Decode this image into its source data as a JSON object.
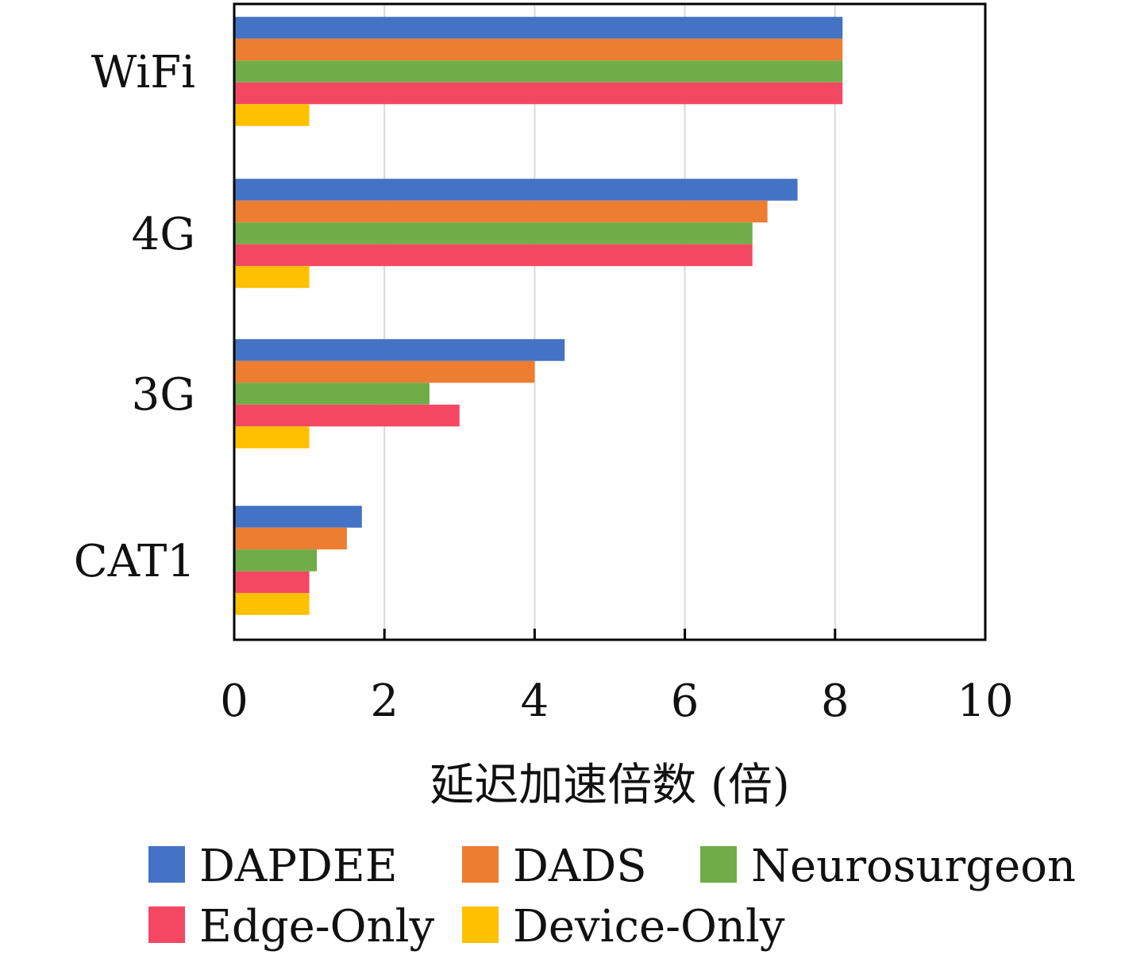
{
  "chart_data": {
    "type": "bar",
    "orientation": "horizontal",
    "categories": [
      "WiFi",
      "4G",
      "3G",
      "CAT1"
    ],
    "series": [
      {
        "name": "DAPDEE",
        "color": "#4472C4",
        "values": [
          8.1,
          7.5,
          4.4,
          1.7
        ]
      },
      {
        "name": "DADS",
        "color": "#ED7D31",
        "values": [
          8.1,
          7.1,
          4.0,
          1.5
        ]
      },
      {
        "name": "Neurosurgeon",
        "color": "#70AD47",
        "values": [
          8.1,
          6.9,
          2.6,
          1.1
        ]
      },
      {
        "name": "Edge-Only",
        "color": "#F44862",
        "values": [
          8.1,
          6.9,
          3.0,
          1.0
        ]
      },
      {
        "name": "Device-Only",
        "color": "#FFC000",
        "values": [
          1.0,
          1.0,
          1.0,
          1.0
        ]
      }
    ],
    "xlim": [
      0,
      10
    ],
    "xticks": [
      "0",
      "2",
      "4",
      "6",
      "8",
      "10"
    ],
    "xlabel": "延迟加速倍数 (倍)",
    "ylabel": "",
    "title": "",
    "grid": "vertical",
    "legend_position": "bottom"
  }
}
